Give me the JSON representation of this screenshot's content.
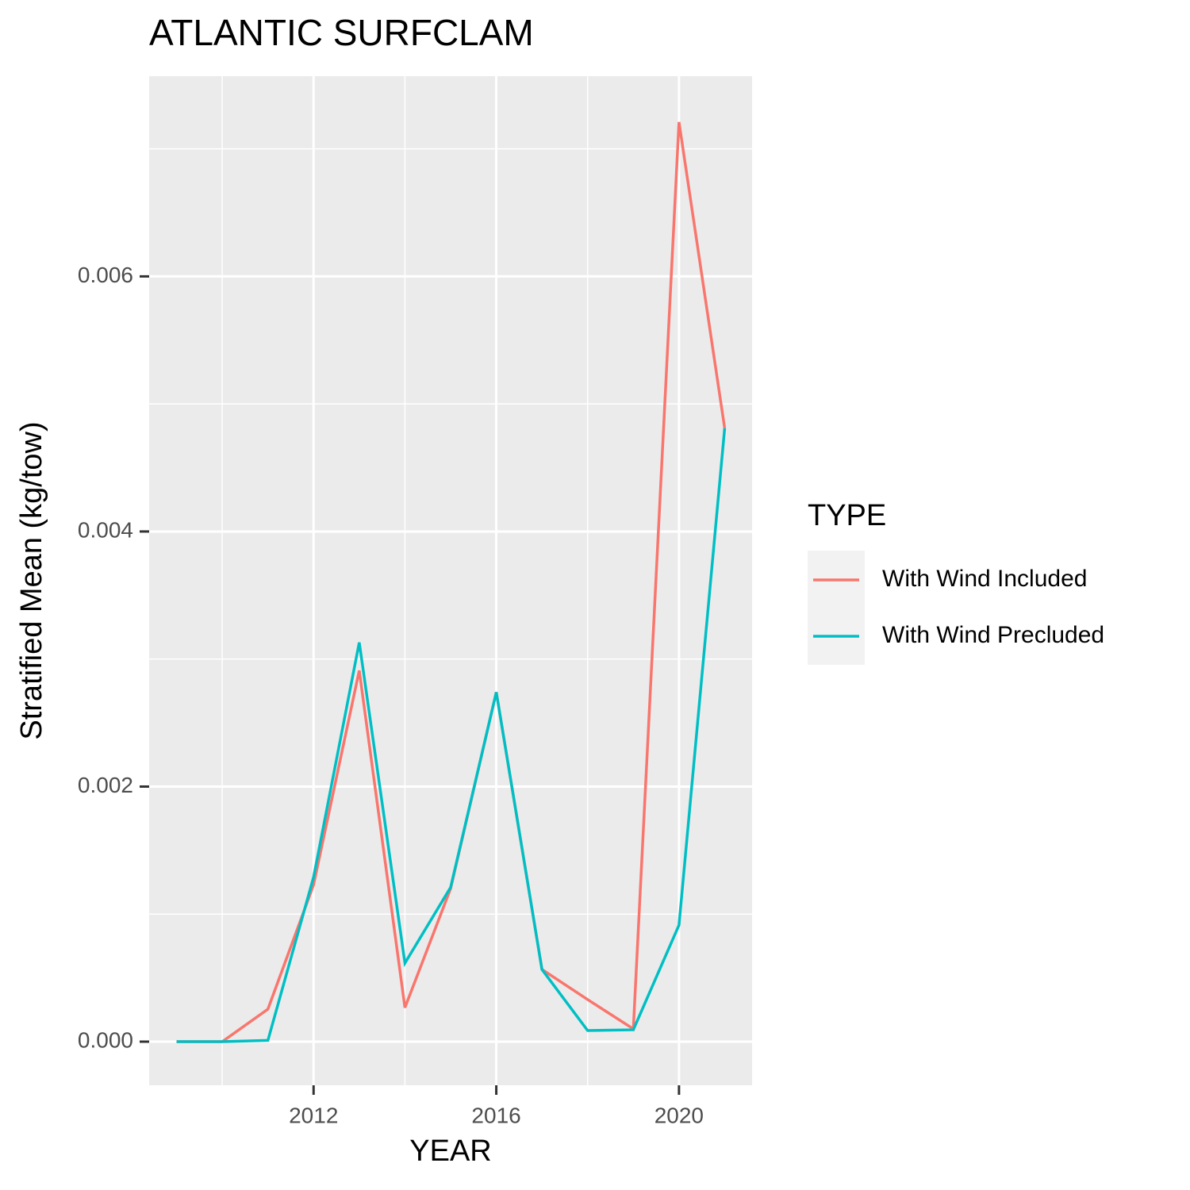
{
  "chart_data": {
    "type": "line",
    "title": "ATLANTIC SURFCLAM",
    "x_label": "YEAR",
    "y_label": "Stratified Mean (kg/tow)",
    "x": [
      2009,
      2010,
      2011,
      2012,
      2013,
      2014,
      2015,
      2016,
      2017,
      2018,
      2019,
      2020,
      2021
    ],
    "series": [
      {
        "name": "With Wind Included",
        "color": "#f8766d",
        "values": [
          0,
          0,
          0.000255,
          0.00123,
          0.00291,
          0.000267,
          0.0012,
          0.00274,
          0.000566,
          0.00033,
          0.0001,
          0.00721,
          0.00481
        ]
      },
      {
        "name": "With Wind Precluded",
        "color": "#00bfc4",
        "values": [
          0,
          0,
          1e-05,
          0.00129,
          0.00313,
          0.000616,
          0.00121,
          0.00274,
          0.000566,
          8.7e-05,
          9.3e-05,
          0.000914,
          0.00481
        ]
      }
    ],
    "xlim": [
      2008.4,
      2021.6
    ],
    "xticks": [
      2012,
      2016,
      2020
    ],
    "xminor": [
      2010,
      2014,
      2018
    ],
    "ylim": [
      -0.000342,
      0.00757
    ],
    "yticks": [
      {
        "value": 0,
        "label": "0.000"
      },
      0.002,
      0.004,
      0.006
    ],
    "yminor": [
      0.001,
      0.003,
      0.005,
      0.007
    ],
    "grid": true,
    "legend_title": "TYPE",
    "legend_position": "right"
  }
}
